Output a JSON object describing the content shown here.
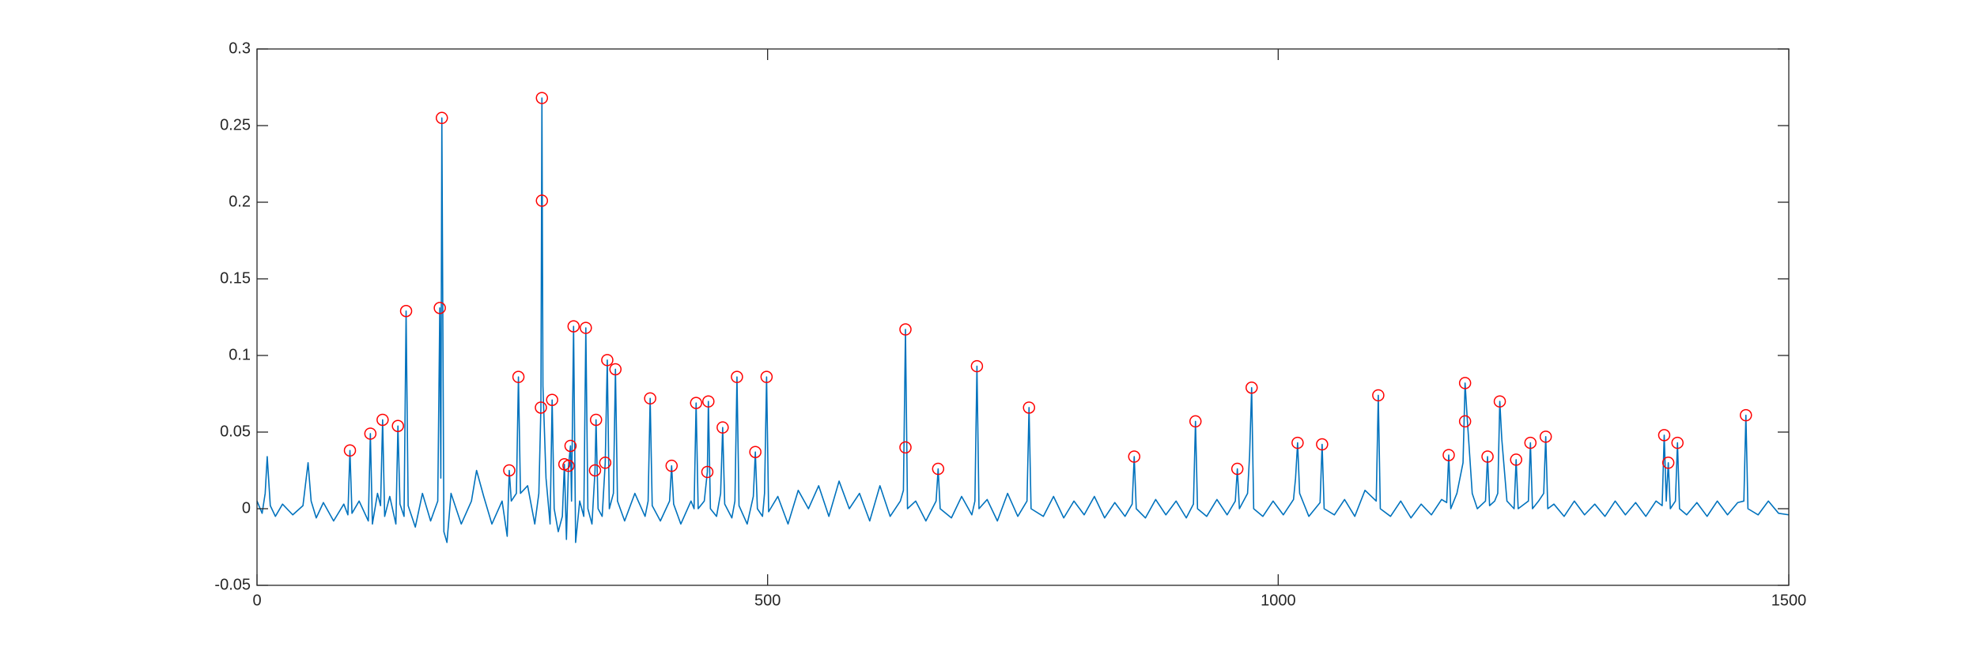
{
  "chart_data": {
    "type": "line",
    "xlim": [
      0,
      1500
    ],
    "xticks": [
      0,
      500,
      1000,
      1500
    ],
    "ylim": [
      -0.05,
      0.3
    ],
    "yticks": [
      -0.05,
      0,
      0.05,
      0.1,
      0.15,
      0.2,
      0.25,
      0.3
    ],
    "box": true,
    "series": [
      {
        "color": "#0072bd",
        "x": [
          0,
          5,
          8,
          10,
          13,
          18,
          25,
          35,
          45,
          50,
          53,
          58,
          65,
          75,
          85,
          89,
          91,
          93,
          100,
          109,
          111,
          113,
          118,
          121,
          123,
          125,
          130,
          136,
          138,
          140,
          144,
          146,
          148,
          155,
          162,
          170,
          177,
          179,
          180,
          181,
          183,
          186,
          190,
          200,
          210,
          215,
          222,
          230,
          240,
          245,
          247,
          249,
          254,
          256,
          258,
          265,
          272,
          276,
          278,
          279,
          280,
          283,
          287,
          289,
          291,
          295,
          299,
          301,
          303,
          305,
          307,
          308,
          310,
          312,
          316,
          320,
          322,
          324,
          328,
          331,
          332,
          334,
          338,
          341,
          343,
          345,
          349,
          351,
          353,
          360,
          370,
          380,
          383,
          385,
          387,
          395,
          404,
          406,
          408,
          415,
          425,
          428,
          430,
          432,
          438,
          441,
          442,
          444,
          450,
          454,
          456,
          458,
          465,
          468,
          470,
          472,
          480,
          486,
          488,
          490,
          495,
          497,
          499,
          501,
          510,
          520,
          530,
          540,
          550,
          560,
          570,
          580,
          590,
          600,
          610,
          620,
          630,
          633,
          635,
          637,
          645,
          655,
          665,
          667,
          669,
          680,
          690,
          700,
          703,
          705,
          707,
          715,
          725,
          735,
          745,
          754,
          756,
          758,
          770,
          780,
          790,
          800,
          810,
          820,
          830,
          840,
          850,
          857,
          859,
          861,
          870,
          880,
          890,
          900,
          910,
          917,
          919,
          921,
          930,
          940,
          950,
          958,
          960,
          962,
          970,
          972,
          974,
          976,
          985,
          995,
          1005,
          1015,
          1017,
          1019,
          1021,
          1030,
          1041,
          1043,
          1045,
          1055,
          1065,
          1075,
          1085,
          1096,
          1098,
          1100,
          1110,
          1120,
          1130,
          1140,
          1150,
          1160,
          1165,
          1167,
          1169,
          1175,
          1181,
          1183,
          1185,
          1190,
          1195,
          1203,
          1205,
          1207,
          1212,
          1215,
          1217,
          1219,
          1224,
          1231,
          1233,
          1235,
          1245,
          1247,
          1249,
          1255,
          1260,
          1262,
          1264,
          1270,
          1280,
          1290,
          1300,
          1310,
          1320,
          1330,
          1340,
          1350,
          1360,
          1370,
          1376,
          1378,
          1380,
          1382,
          1384,
          1389,
          1391,
          1393,
          1400,
          1410,
          1420,
          1430,
          1440,
          1450,
          1456,
          1458,
          1460,
          1470,
          1480,
          1490,
          1500
        ],
        "values": [
          0.005,
          -0.003,
          0.01,
          0.034,
          0.002,
          -0.005,
          0.003,
          -0.004,
          0.002,
          0.03,
          0.005,
          -0.006,
          0.004,
          -0.008,
          0.003,
          -0.004,
          0.038,
          -0.003,
          0.005,
          -0.008,
          0.049,
          -0.01,
          0.01,
          0.002,
          0.058,
          -0.005,
          0.008,
          -0.01,
          0.054,
          0.003,
          -0.005,
          0.129,
          0.002,
          -0.012,
          0.01,
          -0.008,
          0.005,
          0.131,
          0.02,
          0.255,
          -0.015,
          -0.022,
          0.01,
          -0.01,
          0.005,
          0.025,
          0.008,
          -0.01,
          0.005,
          -0.018,
          0.025,
          0.005,
          0.01,
          0.086,
          0.01,
          0.015,
          -0.01,
          0.01,
          0.066,
          0.268,
          0.08,
          0.02,
          -0.01,
          0.071,
          0,
          -0.015,
          -0.005,
          0.029,
          -0.02,
          0.028,
          0.041,
          0.005,
          0.119,
          -0.022,
          0.005,
          -0.005,
          0.118,
          0,
          -0.01,
          0.025,
          0.058,
          0,
          -0.005,
          0.03,
          0.097,
          0,
          0.01,
          0.091,
          0.005,
          -0.008,
          0.01,
          -0.005,
          0.005,
          0.072,
          0.002,
          -0.008,
          0.005,
          0.028,
          0.003,
          -0.01,
          0.005,
          0,
          0.069,
          0,
          0.005,
          0.024,
          0.07,
          0,
          -0.005,
          0.01,
          0.053,
          0.003,
          -0.006,
          0.005,
          0.086,
          0.002,
          -0.01,
          0.008,
          0.037,
          0,
          -0.005,
          0.01,
          0.086,
          -0.002,
          0.008,
          -0.01,
          0.012,
          0,
          0.015,
          -0.005,
          0.018,
          0,
          0.01,
          -0.008,
          0.015,
          -0.005,
          0.005,
          0.012,
          0.117,
          0,
          0.005,
          -0.008,
          0.005,
          0.026,
          0,
          -0.006,
          0.008,
          -0.004,
          0.005,
          0.093,
          0,
          0.006,
          -0.008,
          0.01,
          -0.005,
          0.005,
          0.066,
          0,
          -0.005,
          0.008,
          -0.006,
          0.005,
          -0.004,
          0.008,
          -0.006,
          0.004,
          -0.005,
          0.003,
          0.034,
          0,
          -0.006,
          0.006,
          -0.004,
          0.005,
          -0.006,
          0.003,
          0.057,
          0,
          -0.005,
          0.006,
          -0.004,
          0.005,
          0.026,
          0,
          0.01,
          0.035,
          0.079,
          0,
          -0.005,
          0.005,
          -0.004,
          0.006,
          0.02,
          0.043,
          0.01,
          -0.005,
          0.004,
          0.042,
          0,
          -0.004,
          0.006,
          -0.005,
          0.012,
          0.005,
          0.074,
          0,
          -0.005,
          0.005,
          -0.006,
          0.003,
          -0.004,
          0.006,
          0.004,
          0.035,
          0,
          0.01,
          0.03,
          0.082,
          0.06,
          0.01,
          0,
          0.005,
          0.034,
          0.002,
          0.005,
          0.01,
          0.07,
          0.045,
          0.005,
          0,
          0.032,
          0,
          0.005,
          0.043,
          0,
          0.005,
          0.01,
          0.047,
          0,
          0.003,
          -0.005,
          0.005,
          -0.004,
          0.003,
          -0.005,
          0.005,
          -0.004,
          0.004,
          -0.005,
          0.005,
          0.002,
          0.048,
          0.005,
          0.03,
          0,
          0.005,
          0.043,
          0,
          -0.004,
          0.004,
          -0.005,
          0.005,
          -0.004,
          0.004,
          0.005,
          0.061,
          0,
          -0.004,
          0.005,
          -0.003,
          -0.004
        ]
      },
      {
        "color": "#ff0000",
        "marker": "o",
        "linestyle": "none",
        "x": [
          91,
          111,
          123,
          138,
          146,
          179,
          181,
          247,
          256,
          278,
          279,
          279,
          289,
          301,
          305,
          307,
          310,
          322,
          331,
          332,
          341,
          343,
          351,
          385,
          406,
          430,
          441,
          442,
          456,
          470,
          488,
          499,
          635,
          635,
          667,
          705,
          756,
          859,
          919,
          960,
          974,
          1019,
          1043,
          1098,
          1167,
          1183,
          1183,
          1205,
          1217,
          1233,
          1247,
          1262,
          1378,
          1382,
          1391,
          1458
        ],
        "values": [
          0.038,
          0.049,
          0.058,
          0.054,
          0.129,
          0.131,
          0.255,
          0.025,
          0.086,
          0.066,
          0.268,
          0.201,
          0.071,
          0.029,
          0.028,
          0.041,
          0.119,
          0.118,
          0.025,
          0.058,
          0.03,
          0.097,
          0.091,
          0.072,
          0.028,
          0.069,
          0.024,
          0.07,
          0.053,
          0.086,
          0.037,
          0.086,
          0.117,
          0.04,
          0.026,
          0.093,
          0.066,
          0.034,
          0.057,
          0.026,
          0.079,
          0.043,
          0.042,
          0.074,
          0.035,
          0.082,
          0.057,
          0.034,
          0.07,
          0.032,
          0.043,
          0.047,
          0.048,
          0.03,
          0.043,
          0.061
        ]
      }
    ]
  }
}
